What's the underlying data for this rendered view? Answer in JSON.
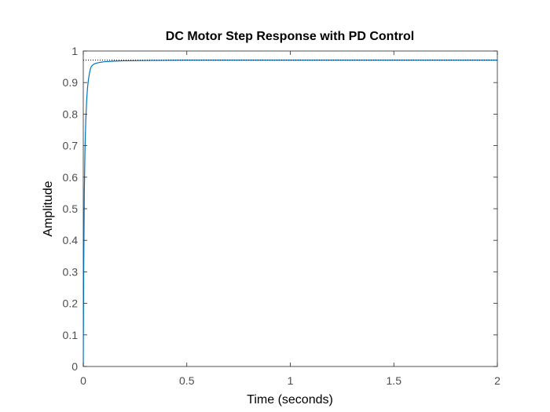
{
  "chart_data": {
    "type": "line",
    "title": "DC Motor Step Response with PD Control",
    "xlabel": "Time (seconds)",
    "ylabel": "Amplitude",
    "xlim": [
      0,
      2
    ],
    "ylim": [
      0,
      1
    ],
    "x_ticks": [
      "0",
      "0.5",
      "1",
      "1.5",
      "2"
    ],
    "y_ticks": [
      "0",
      "0.1",
      "0.2",
      "0.3",
      "0.4",
      "0.5",
      "0.6",
      "0.7",
      "0.8",
      "0.9",
      "1"
    ],
    "grid": false,
    "legend": "none",
    "colors": {
      "response": "#0072BD",
      "reference": "#000000",
      "axes": "#262626",
      "tick_text": "#4d4d4d"
    },
    "series": [
      {
        "x": [
          0,
          0.002,
          0.005,
          0.008,
          0.012,
          0.016,
          0.02,
          0.025,
          0.03,
          0.035,
          0.04,
          0.05,
          0.06,
          0.08,
          0.1,
          0.15,
          0.2,
          0.3,
          0.5,
          0.75,
          1,
          1.5,
          2
        ],
        "values": [
          0,
          0.3,
          0.55,
          0.68,
          0.78,
          0.84,
          0.88,
          0.91,
          0.93,
          0.945,
          0.952,
          0.958,
          0.961,
          0.964,
          0.966,
          0.968,
          0.969,
          0.97,
          0.971,
          0.971,
          0.971,
          0.971,
          0.971
        ],
        "style": "solid"
      },
      {
        "x": [
          0,
          2
        ],
        "values": [
          0.971,
          0.971
        ],
        "style": "dotted"
      }
    ]
  }
}
